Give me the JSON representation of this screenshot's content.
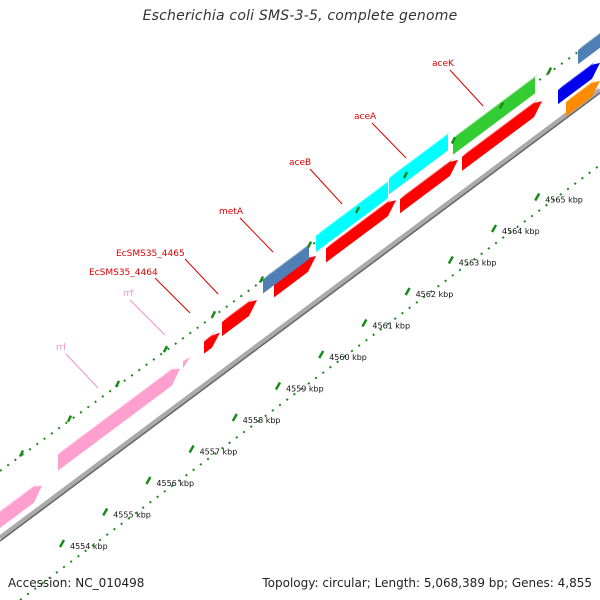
{
  "title": "Escherichia coli SMS-3-5, complete genome",
  "footer": {
    "accession": "Accession: NC_010498",
    "summary": "Topology: circular; Length: 5,068,389 bp; Genes: 4,855"
  },
  "colors": {
    "rrna": "#ff9fcf",
    "cds": "#ff0000",
    "gene_blue": "#4f7fb5",
    "gene_cyan": "#00ffff",
    "gene_green": "#33cc33",
    "gene_darkblue": "#0000ee",
    "gene_orange": "#ff8c00",
    "backbone": "#888888",
    "tick": "#1a8a1a",
    "label_red": "#dd0000",
    "label_pink": "#f090c0"
  },
  "scale_labels": [
    {
      "kbp": 4554,
      "text": "4554 kbp"
    },
    {
      "kbp": 4555,
      "text": "4555 kbp"
    },
    {
      "kbp": 4556,
      "text": "4556 kbp"
    },
    {
      "kbp": 4557,
      "text": "4557 kbp"
    },
    {
      "kbp": 4558,
      "text": "4558 kbp"
    },
    {
      "kbp": 4559,
      "text": "4559 kbp"
    },
    {
      "kbp": 4560,
      "text": "4560 kbp"
    },
    {
      "kbp": 4561,
      "text": "4561 kbp"
    },
    {
      "kbp": 4562,
      "text": "4562 kbp"
    },
    {
      "kbp": 4563,
      "text": "4563 kbp"
    },
    {
      "kbp": 4564,
      "text": "4564 kbp"
    },
    {
      "kbp": 4565,
      "text": "4565 kbp"
    }
  ],
  "gene_labels": [
    {
      "text": "rrl",
      "color": "pink"
    },
    {
      "text": "rrf",
      "color": "pink"
    },
    {
      "text": "EcSMS35_4464",
      "color": "red"
    },
    {
      "text": "EcSMS35_4465",
      "color": "red"
    },
    {
      "text": "metA",
      "color": "red"
    },
    {
      "text": "aceB",
      "color": "red"
    },
    {
      "text": "aceA",
      "color": "red"
    },
    {
      "text": "aceK",
      "color": "red"
    }
  ]
}
